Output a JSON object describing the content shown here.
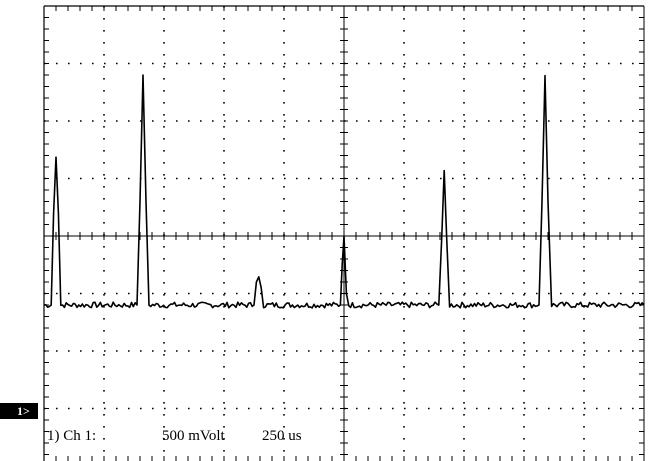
{
  "chart_data": {
    "type": "line",
    "title": "",
    "xlabel": "",
    "ylabel": "",
    "grid": true,
    "divisions": {
      "x": 10,
      "y": 8
    },
    "channel_marker": "1>",
    "readout": {
      "channel": "1) Ch 1:",
      "volts_per_div": "500 mVolt",
      "time_per_div": "250 us"
    },
    "series": [
      {
        "values_description_units": "x in time divisions (0-10), y in vertical divisions from bottom (0-8)",
        "baseline_y": 2.8,
        "noise_amplitude": 0.05,
        "points": [
          [
            0.0,
            2.8
          ],
          [
            0.12,
            2.8
          ],
          [
            0.16,
            4.4
          ],
          [
            0.2,
            5.37
          ],
          [
            0.24,
            4.4
          ],
          [
            0.28,
            2.8
          ],
          [
            1.0,
            2.8
          ],
          [
            1.55,
            2.8
          ],
          [
            1.6,
            4.6
          ],
          [
            1.65,
            6.8
          ],
          [
            1.7,
            4.6
          ],
          [
            1.75,
            2.8
          ],
          [
            2.6,
            2.8
          ],
          [
            3.5,
            2.8
          ],
          [
            3.54,
            3.2
          ],
          [
            3.58,
            3.29
          ],
          [
            3.62,
            3.1
          ],
          [
            3.66,
            2.8
          ],
          [
            4.5,
            2.8
          ],
          [
            4.94,
            2.8
          ],
          [
            4.97,
            3.5
          ],
          [
            5.0,
            4.0
          ],
          [
            5.04,
            3.0
          ],
          [
            5.08,
            2.8
          ],
          [
            6.0,
            2.8
          ],
          [
            6.58,
            2.8
          ],
          [
            6.63,
            4.0
          ],
          [
            6.67,
            5.14
          ],
          [
            6.71,
            4.0
          ],
          [
            6.76,
            2.8
          ],
          [
            7.5,
            2.8
          ],
          [
            8.25,
            2.8
          ],
          [
            8.3,
            4.6
          ],
          [
            8.35,
            6.79
          ],
          [
            8.4,
            4.6
          ],
          [
            8.46,
            2.8
          ],
          [
            10.0,
            2.8
          ]
        ]
      }
    ]
  }
}
